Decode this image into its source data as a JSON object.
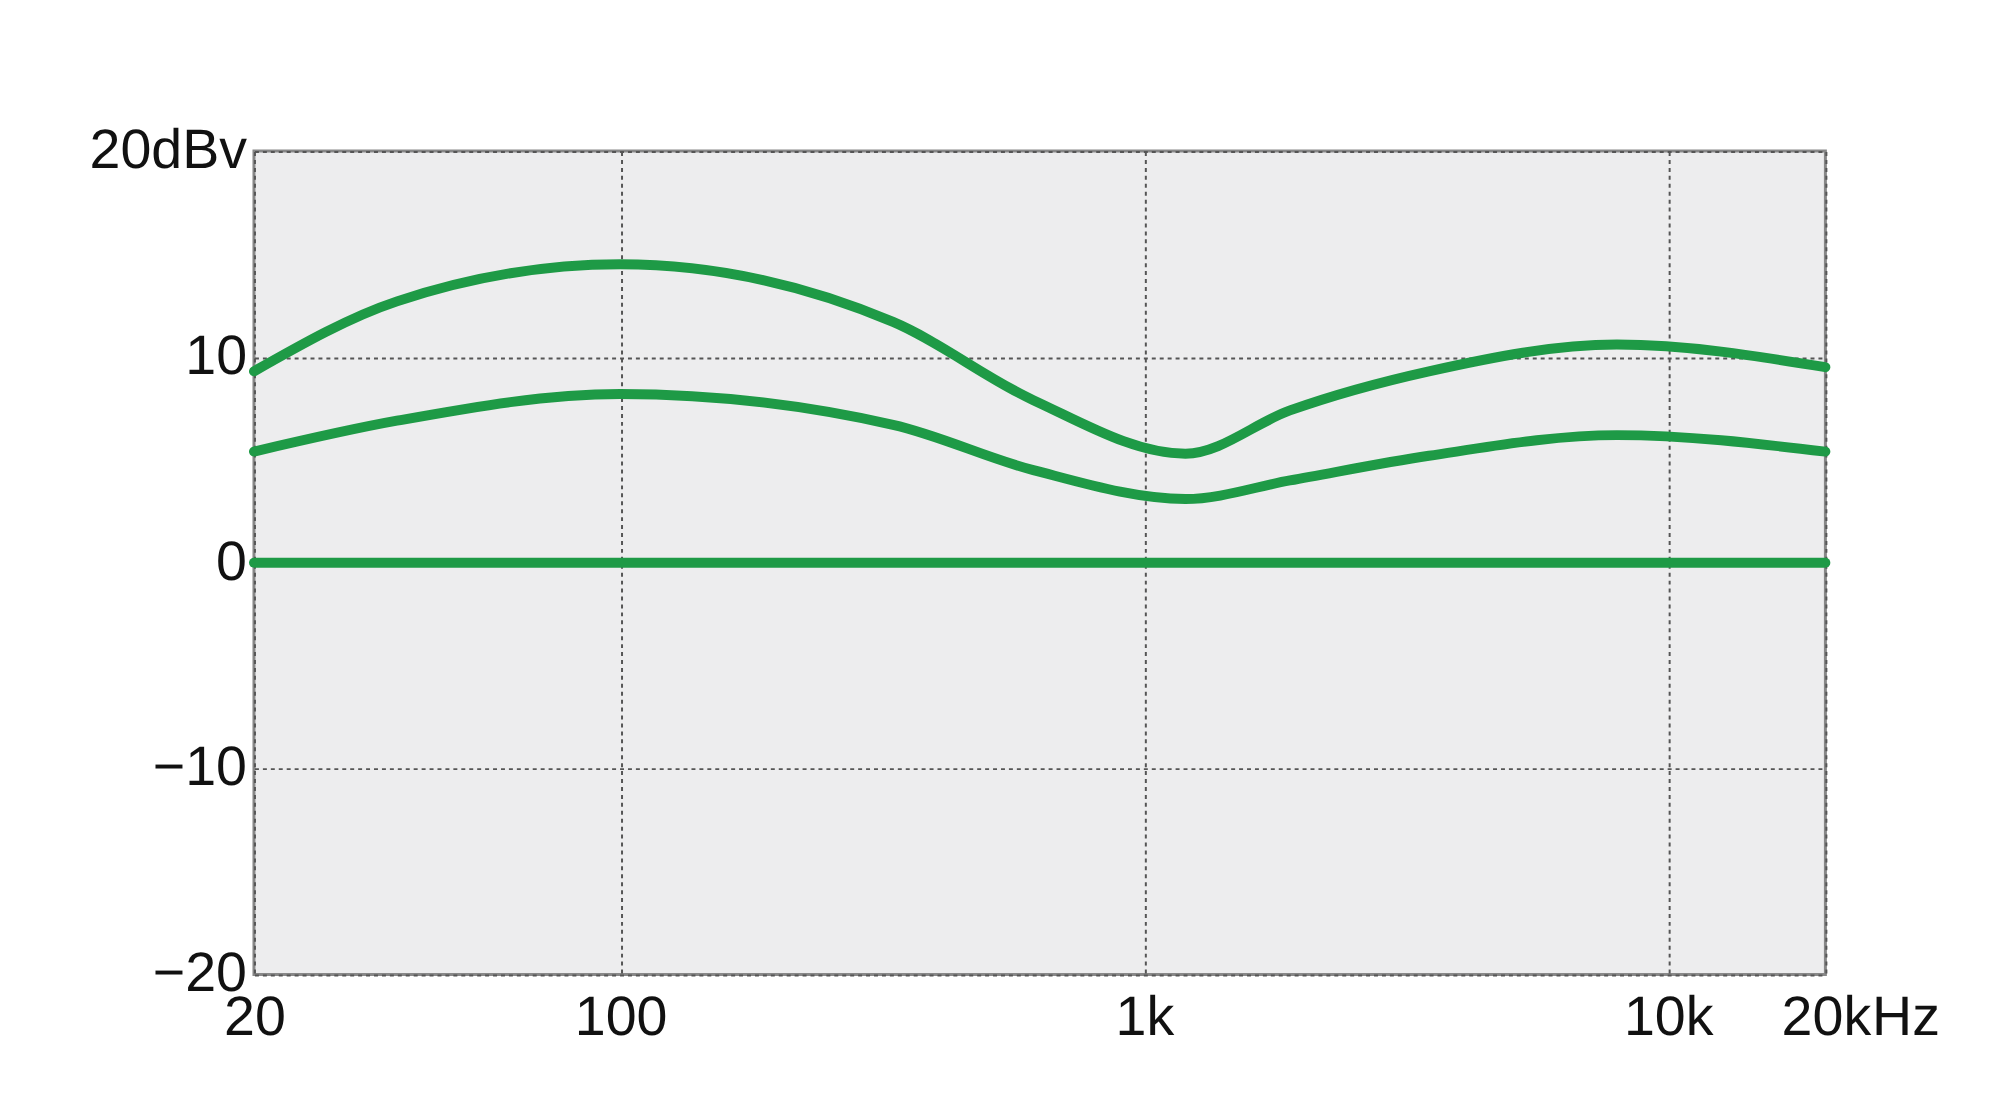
{
  "chart_data": {
    "type": "line",
    "x": [
      20,
      37.5,
      100,
      332,
      615,
      1200,
      1900,
      3500,
      8000,
      20000
    ],
    "series": [
      {
        "color": "#1e9a46",
        "values": [
          9.3,
          12.7,
          14.5,
          11.7,
          7.9,
          5.3,
          7.4,
          9.3,
          10.6,
          9.5
        ]
      },
      {
        "color": "#1e9a46",
        "values": [
          5.4,
          6.9,
          8.2,
          6.7,
          4.5,
          3.1,
          4.0,
          5.2,
          6.2,
          5.4
        ]
      },
      {
        "color": "#1e9a46",
        "values": [
          0,
          0,
          0,
          0,
          0,
          0,
          0,
          0,
          0,
          0
        ]
      }
    ],
    "log": "x",
    "xlim": [
      20,
      20000
    ],
    "xticks": [
      20,
      100,
      {
        "value": 1000,
        "label": "1k"
      },
      {
        "value": 10000,
        "label": "10k"
      },
      {
        "value": 20000,
        "label": "20k"
      }
    ],
    "xlabel": "Hz",
    "ylim": [
      -20,
      20
    ],
    "yticks": [
      -20,
      -10,
      0,
      10,
      {
        "value": 20,
        "label": "20dBv"
      }
    ],
    "grid": true,
    "legend": false,
    "marker": "none",
    "line_style": "solid"
  }
}
